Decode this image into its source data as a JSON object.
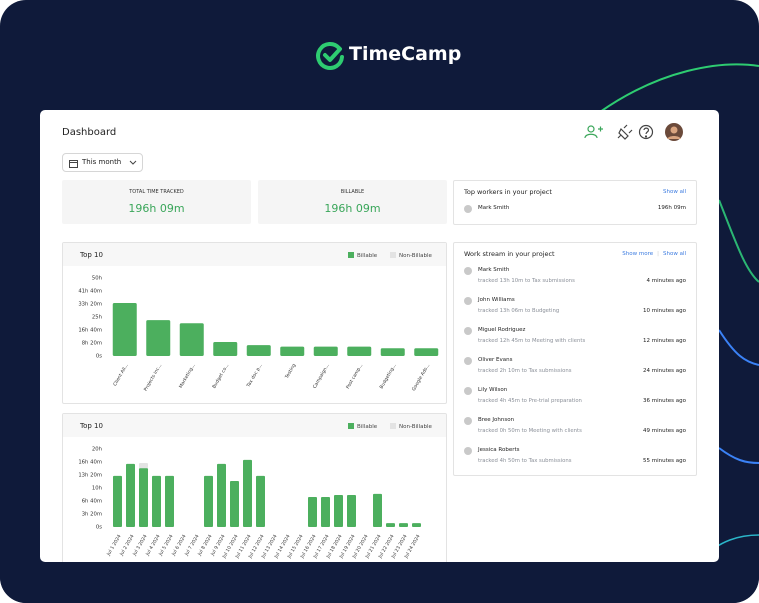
{
  "header": {
    "logo": "TimeCamp",
    "title": "Dashboard",
    "filter": "This month"
  },
  "stats": [
    {
      "label": "TOTAL TIME TRACKED",
      "value": "196h 09m"
    },
    {
      "label": "BILLABLE",
      "value": "196h 09m"
    }
  ],
  "top_workers": {
    "title": "Top workers in your project",
    "show_all": "Show all",
    "rows": [
      {
        "name": "Mark Smith",
        "time": "196h 09m"
      }
    ]
  },
  "work_stream": {
    "title": "Work stream in your project",
    "show_more": "Show more",
    "show_all": "Show all",
    "items": [
      {
        "name": "Mark Smith",
        "text": "tracked 13h 10m to Tax submissions",
        "time": "4 minutes ago"
      },
      {
        "name": "John Williams",
        "text": "tracked 13h 06m to Budgeting",
        "time": "10 minutes ago"
      },
      {
        "name": "Miguel Rodriguez",
        "text": "tracked 12h 45m to Meeting with clients",
        "time": "12 minutes ago"
      },
      {
        "name": "Oliver Evans",
        "text": "tracked 2h 10m to Tax submissions",
        "time": "24 minutes ago"
      },
      {
        "name": "Lily Wilson",
        "text": "tracked 4h 45m to Pre-trial preparation",
        "time": "36 minutes ago"
      },
      {
        "name": "Bree Johnson",
        "text": "tracked 0h 50m to Meeting with clients",
        "time": "49 minutes ago"
      },
      {
        "name": "Jessica Roberts",
        "text": "tracked 4h 50m to Tax submissions",
        "time": "55 minutes ago"
      }
    ]
  },
  "chart_data": [
    {
      "type": "bar",
      "title": "Top 10",
      "categories": [
        "Client All...",
        "Projects inc...",
        "Marketing...",
        "Budget co...",
        "Tax doc p...",
        "Testing",
        "Campaign...",
        "Post camp...",
        "Budgeting...",
        "Google Ads..."
      ],
      "series": [
        {
          "name": "Billable",
          "color": "#4caf5e",
          "values": [
            34,
            23,
            21,
            9,
            7,
            6,
            6,
            6,
            5,
            5
          ]
        },
        {
          "name": "Non-Billable",
          "color": "#e3e3e3",
          "values": [
            null,
            null,
            null,
            null,
            null,
            null,
            null,
            null,
            null,
            null
          ]
        }
      ],
      "ylim": [
        0,
        50
      ],
      "yticks": [
        {
          "value": 0,
          "label": "0s"
        },
        {
          "value": 8.333,
          "label": "8h 20m"
        },
        {
          "value": 16.667,
          "label": "16h 40m"
        },
        {
          "value": 25,
          "label": "25h"
        },
        {
          "value": 33.333,
          "label": "33h 20m"
        },
        {
          "value": 41.667,
          "label": "41h 40m"
        },
        {
          "value": 50,
          "label": "50h"
        }
      ]
    },
    {
      "type": "bar",
      "title": "Top 10",
      "categories": [
        "Jul 1 2024",
        "Jul 2 2024",
        "Jul 3 2024",
        "Jul 4 2024",
        "Jul 5 2024",
        "Jul 6 2024",
        "Jul 7 2024",
        "Jul 8 2024",
        "Jul 9 2024",
        "Jul 10 2024",
        "Jul 11 2024",
        "Jul 12 2024",
        "Jul 13 2024",
        "Jul 14 2024",
        "Jul 15 2024",
        "Jul 16 2024",
        "Jul 17 2024",
        "Jul 18 2024",
        "Jul 19 2024",
        "Jul 20 2024",
        "Jul 21 2024",
        "Jul 22 2024",
        "Jul 23 2024",
        "Jul 24 2024"
      ],
      "series": [
        {
          "name": "Billable",
          "color": "#4caf5e",
          "values": [
            13.1,
            16.2,
            15.1,
            13.1,
            13.1,
            null,
            null,
            13.1,
            16.2,
            11.8,
            17.2,
            13.1,
            null,
            null,
            null,
            7.7,
            7.7,
            8.2,
            8.2,
            null,
            8.5,
            1,
            1,
            1
          ]
        },
        {
          "name": "Non-Billable",
          "color": "#e3e3e3",
          "values": [
            null,
            null,
            1.3,
            null,
            null,
            null,
            null,
            null,
            null,
            null,
            null,
            null,
            null,
            null,
            null,
            null,
            null,
            null,
            null,
            null,
            null,
            null,
            null,
            null
          ]
        }
      ],
      "ylim": [
        0,
        20
      ],
      "yticks": [
        {
          "value": 0,
          "label": "0s"
        },
        {
          "value": 3.333,
          "label": "3h 20m"
        },
        {
          "value": 6.667,
          "label": "6h 40m"
        },
        {
          "value": 10,
          "label": "10h"
        },
        {
          "value": 13.333,
          "label": "13h 20m"
        },
        {
          "value": 16.667,
          "label": "16h 40m"
        },
        {
          "value": 20,
          "label": "20h"
        }
      ]
    }
  ]
}
